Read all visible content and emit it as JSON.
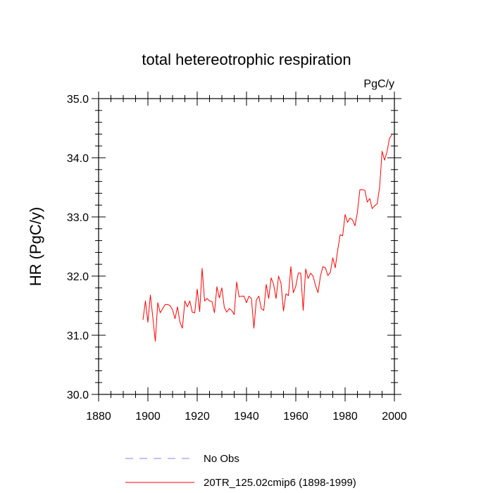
{
  "chart_data": {
    "type": "line",
    "title": "total hetereotrophic respiration",
    "units": "PgC/y",
    "ylabel": "HR  (PgC/y)",
    "xlabel": "",
    "xlim": [
      1880,
      2000
    ],
    "ylim": [
      30.0,
      35.0
    ],
    "x_ticks": [
      1880,
      1900,
      1920,
      1940,
      1960,
      1980,
      2000
    ],
    "x_tick_labels": [
      "1880",
      "1900",
      "1920",
      "1940",
      "1960",
      "1980",
      "2000"
    ],
    "y_ticks": [
      30.0,
      31.0,
      32.0,
      33.0,
      34.0,
      35.0
    ],
    "y_tick_labels": [
      "30.0",
      "31.0",
      "32.0",
      "33.0",
      "34.0",
      "35.0"
    ],
    "legend": [
      {
        "label": "No Obs",
        "color": "#8080ff",
        "style": "dashed"
      },
      {
        "label": "20TR_125.02cmip6 (1898-1999)",
        "color": "#ff0000",
        "style": "solid"
      }
    ],
    "series": [
      {
        "name": "20TR_125.02cmip6 (1898-1999)",
        "color": "#ff0000",
        "x": [
          1898,
          1899,
          1900,
          1901,
          1902,
          1903,
          1904,
          1905,
          1906,
          1907,
          1908,
          1909,
          1910,
          1911,
          1912,
          1913,
          1914,
          1915,
          1916,
          1917,
          1918,
          1919,
          1920,
          1921,
          1922,
          1923,
          1924,
          1925,
          1926,
          1927,
          1928,
          1929,
          1930,
          1931,
          1932,
          1933,
          1934,
          1935,
          1936,
          1937,
          1938,
          1939,
          1940,
          1941,
          1942,
          1943,
          1944,
          1945,
          1946,
          1947,
          1948,
          1949,
          1950,
          1951,
          1952,
          1953,
          1954,
          1955,
          1956,
          1957,
          1958,
          1959,
          1960,
          1961,
          1962,
          1963,
          1964,
          1965,
          1966,
          1967,
          1968,
          1969,
          1970,
          1971,
          1972,
          1973,
          1974,
          1975,
          1976,
          1977,
          1978,
          1979,
          1980,
          1981,
          1982,
          1983,
          1984,
          1985,
          1986,
          1987,
          1988,
          1989,
          1990,
          1991,
          1992,
          1993,
          1994,
          1995,
          1996,
          1997,
          1998,
          1999
        ],
        "y": [
          31.26,
          31.58,
          31.22,
          31.68,
          31.3,
          30.9,
          31.55,
          31.38,
          31.45,
          31.52,
          31.52,
          31.5,
          31.43,
          31.28,
          31.48,
          31.22,
          31.12,
          31.58,
          31.48,
          31.58,
          31.39,
          31.38,
          31.78,
          31.4,
          32.13,
          31.58,
          31.62,
          31.58,
          31.57,
          31.38,
          31.82,
          31.63,
          31.8,
          31.47,
          31.39,
          31.45,
          31.42,
          31.35,
          31.9,
          31.65,
          31.66,
          31.66,
          31.55,
          31.66,
          31.62,
          31.12,
          31.6,
          31.66,
          31.45,
          31.42,
          31.86,
          31.62,
          31.97,
          31.86,
          31.62,
          32.0,
          31.88,
          31.41,
          31.7,
          31.67,
          32.16,
          31.72,
          31.83,
          32.05,
          32.05,
          31.42,
          32.12,
          31.96,
          32.05,
          32.0,
          31.84,
          31.72,
          32.0,
          32.16,
          32.14,
          32.01,
          32.06,
          32.31,
          32.14,
          32.44,
          32.7,
          32.68,
          33.04,
          32.91,
          32.98,
          32.95,
          32.85,
          33.08,
          33.46,
          33.46,
          33.45,
          33.25,
          33.31,
          33.14,
          33.19,
          33.22,
          33.5,
          34.11,
          33.96,
          34.1,
          34.33,
          34.39
        ]
      }
    ]
  }
}
